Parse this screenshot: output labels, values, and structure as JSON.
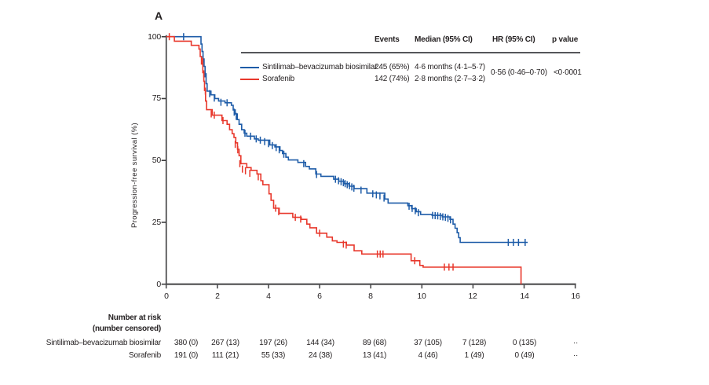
{
  "panel_label": "A",
  "colors": {
    "sintilimab": "#1E5CA8",
    "sorafenib": "#E8382C",
    "text": "#231F20",
    "axis": "#4D4D4F",
    "rule": "#55565A"
  },
  "summary_table": {
    "headers": {
      "events": "Events",
      "median": "Median (95% CI)",
      "hr": "HR (95% CI)",
      "p": "p value"
    },
    "rows": [
      {
        "label": "Sintilimab–bevacizumab biosimilar",
        "events": "245 (65%)",
        "median": "4·6 months (4·1–5·7)"
      },
      {
        "label": "Sorafenib",
        "events": "142 (74%)",
        "median": "2·8 months (2·7–3·2)"
      }
    ],
    "hr_value": "0·56 (0·46–0·70)",
    "p_value": "<0·0001"
  },
  "chart_data": {
    "type": "line",
    "subtype": "kaplan-meier-step",
    "title": "",
    "xlabel": "",
    "ylabel": "Progression-free survival (%)",
    "xlim": [
      0,
      16
    ],
    "ylim": [
      0,
      100
    ],
    "x_ticks": [
      "0",
      "2",
      "4",
      "6",
      "8",
      "10",
      "12",
      "14",
      "16"
    ],
    "y_ticks": [
      "0",
      "25",
      "50",
      "75",
      "100"
    ],
    "grid": false,
    "legend_position": "top-right-table",
    "series": [
      {
        "name": "Sintilimab–bevacizumab biosimilar",
        "color": "#1E5CA8",
        "steps": [
          [
            0,
            100
          ],
          [
            1.32,
            100
          ],
          [
            1.36,
            97
          ],
          [
            1.4,
            94
          ],
          [
            1.44,
            91
          ],
          [
            1.48,
            88
          ],
          [
            1.52,
            85
          ],
          [
            1.56,
            81
          ],
          [
            1.6,
            78
          ],
          [
            1.75,
            76.5
          ],
          [
            1.9,
            75
          ],
          [
            2.05,
            74
          ],
          [
            2.3,
            73.3
          ],
          [
            2.55,
            72.3
          ],
          [
            2.62,
            70.4
          ],
          [
            2.7,
            68.8
          ],
          [
            2.78,
            66.5
          ],
          [
            2.85,
            64.6
          ],
          [
            2.95,
            62.4
          ],
          [
            3.05,
            61
          ],
          [
            3.15,
            59.8
          ],
          [
            3.45,
            58.7
          ],
          [
            3.6,
            58.2
          ],
          [
            4.05,
            56.3
          ],
          [
            4.25,
            55.5
          ],
          [
            4.45,
            54
          ],
          [
            4.55,
            52.8
          ],
          [
            4.68,
            51.3
          ],
          [
            4.78,
            50.2
          ],
          [
            5.15,
            49.2
          ],
          [
            5.45,
            47.6
          ],
          [
            5.6,
            46.6
          ],
          [
            5.85,
            44.5
          ],
          [
            6.05,
            43.6
          ],
          [
            6.55,
            42.4
          ],
          [
            6.75,
            41.6
          ],
          [
            6.95,
            40.6
          ],
          [
            7.15,
            39.6
          ],
          [
            7.35,
            38.6
          ],
          [
            7.85,
            36.8
          ],
          [
            8.55,
            34.4
          ],
          [
            8.68,
            32.8
          ],
          [
            9.45,
            31.7
          ],
          [
            9.6,
            30.5
          ],
          [
            9.78,
            29.3
          ],
          [
            9.95,
            28.2
          ],
          [
            10.4,
            27.8
          ],
          [
            10.8,
            27.2
          ],
          [
            11.1,
            26.2
          ],
          [
            11.22,
            24.3
          ],
          [
            11.3,
            22.6
          ],
          [
            11.38,
            20.8
          ],
          [
            11.44,
            18.8
          ],
          [
            11.5,
            16.9
          ],
          [
            14.14,
            16.9
          ]
        ],
        "censors": [
          [
            0.68,
            100
          ],
          [
            1.44,
            91
          ],
          [
            1.52,
            85
          ],
          [
            1.7,
            77
          ],
          [
            1.88,
            75.2
          ],
          [
            2.14,
            73.5
          ],
          [
            2.38,
            73.3
          ],
          [
            2.66,
            69.5
          ],
          [
            2.74,
            67.8
          ],
          [
            3.08,
            61
          ],
          [
            3.3,
            59.8
          ],
          [
            3.52,
            58.7
          ],
          [
            3.68,
            58.2
          ],
          [
            3.85,
            57.6
          ],
          [
            4.0,
            56.8
          ],
          [
            4.15,
            56
          ],
          [
            4.3,
            55.2
          ],
          [
            4.42,
            54.3
          ],
          [
            4.6,
            52.5
          ],
          [
            5.38,
            48.7
          ],
          [
            5.88,
            44.3
          ],
          [
            6.62,
            42.4
          ],
          [
            6.74,
            41.8
          ],
          [
            6.84,
            41.4
          ],
          [
            6.93,
            41
          ],
          [
            7.0,
            40.6
          ],
          [
            7.08,
            40.2
          ],
          [
            7.17,
            39.8
          ],
          [
            7.26,
            39.3
          ],
          [
            7.34,
            38.8
          ],
          [
            7.62,
            38
          ],
          [
            8.08,
            36.5
          ],
          [
            8.22,
            36.1
          ],
          [
            8.36,
            35.7
          ],
          [
            8.52,
            34.8
          ],
          [
            9.5,
            31.5
          ],
          [
            9.62,
            30.6
          ],
          [
            9.74,
            29.7
          ],
          [
            9.86,
            28.9
          ],
          [
            10.42,
            27.8
          ],
          [
            10.52,
            27.7
          ],
          [
            10.62,
            27.6
          ],
          [
            10.72,
            27.4
          ],
          [
            10.82,
            27.2
          ],
          [
            10.92,
            27
          ],
          [
            11.02,
            26.6
          ],
          [
            11.12,
            26
          ],
          [
            13.38,
            16.9
          ],
          [
            13.58,
            16.9
          ],
          [
            13.78,
            16.9
          ],
          [
            14.04,
            16.9
          ]
        ]
      },
      {
        "name": "Sorafenib",
        "color": "#E8382C",
        "steps": [
          [
            0,
            100
          ],
          [
            0.32,
            98.2
          ],
          [
            0.98,
            96.5
          ],
          [
            1.28,
            95
          ],
          [
            1.33,
            92
          ],
          [
            1.38,
            89
          ],
          [
            1.43,
            85.5
          ],
          [
            1.47,
            82
          ],
          [
            1.5,
            78.3
          ],
          [
            1.54,
            74
          ],
          [
            1.58,
            70.5
          ],
          [
            1.8,
            68.3
          ],
          [
            2.18,
            66.1
          ],
          [
            2.38,
            64.6
          ],
          [
            2.48,
            62.4
          ],
          [
            2.58,
            60.8
          ],
          [
            2.65,
            59.3
          ],
          [
            2.72,
            57.1
          ],
          [
            2.79,
            54.5
          ],
          [
            2.85,
            51.9
          ],
          [
            2.92,
            48.7
          ],
          [
            3.15,
            47.1
          ],
          [
            3.32,
            46
          ],
          [
            3.55,
            44.5
          ],
          [
            3.7,
            41.8
          ],
          [
            3.78,
            40.2
          ],
          [
            4.02,
            36.5
          ],
          [
            4.1,
            33.9
          ],
          [
            4.2,
            30.7
          ],
          [
            4.42,
            28.6
          ],
          [
            4.95,
            27
          ],
          [
            5.28,
            26.2
          ],
          [
            5.5,
            24.3
          ],
          [
            5.62,
            22.8
          ],
          [
            5.88,
            20.6
          ],
          [
            6.28,
            19
          ],
          [
            6.5,
            17.5
          ],
          [
            6.68,
            16.9
          ],
          [
            7.05,
            15.8
          ],
          [
            7.35,
            13.5
          ],
          [
            7.65,
            12.2
          ],
          [
            9.48,
            12.2
          ],
          [
            9.58,
            9.5
          ],
          [
            9.92,
            7.6
          ],
          [
            10.05,
            6.9
          ],
          [
            13.88,
            6.9
          ],
          [
            13.88,
            0
          ]
        ],
        "censors": [
          [
            0.12,
            100
          ],
          [
            1.43,
            90
          ],
          [
            1.47,
            85
          ],
          [
            1.53,
            78
          ],
          [
            1.76,
            68.8
          ],
          [
            1.88,
            68.3
          ],
          [
            2.22,
            66.1
          ],
          [
            2.7,
            56.5
          ],
          [
            2.8,
            54.3
          ],
          [
            2.88,
            48.7
          ],
          [
            2.98,
            46.5
          ],
          [
            3.1,
            45.8
          ],
          [
            3.27,
            44.8
          ],
          [
            3.6,
            43.4
          ],
          [
            4.28,
            30.7
          ],
          [
            4.4,
            29.3
          ],
          [
            5.05,
            27
          ],
          [
            5.26,
            26.3
          ],
          [
            6.0,
            20.6
          ],
          [
            6.93,
            16.2
          ],
          [
            7.04,
            15.8
          ],
          [
            8.26,
            12.2
          ],
          [
            8.37,
            12.2
          ],
          [
            8.48,
            12.2
          ],
          [
            9.72,
            9.5
          ],
          [
            10.88,
            6.9
          ],
          [
            11.06,
            6.9
          ],
          [
            11.22,
            6.9
          ]
        ]
      }
    ]
  },
  "risk_table": {
    "title": "Number at risk",
    "subtitle": "(number censored)",
    "rows": [
      {
        "label": "Sintilimab–bevacizumab biosimilar",
        "values": [
          "380 (0)",
          "267 (13)",
          "197 (26)",
          "144 (34)",
          "89 (68)",
          "37 (105)",
          "7 (128)",
          "0 (135)",
          "··"
        ]
      },
      {
        "label": "Sorafenib",
        "values": [
          "191 (0)",
          "111 (21)",
          "55 (33)",
          "24 (38)",
          "13 (41)",
          "4 (46)",
          "1 (49)",
          "0 (49)",
          "··"
        ]
      }
    ]
  }
}
